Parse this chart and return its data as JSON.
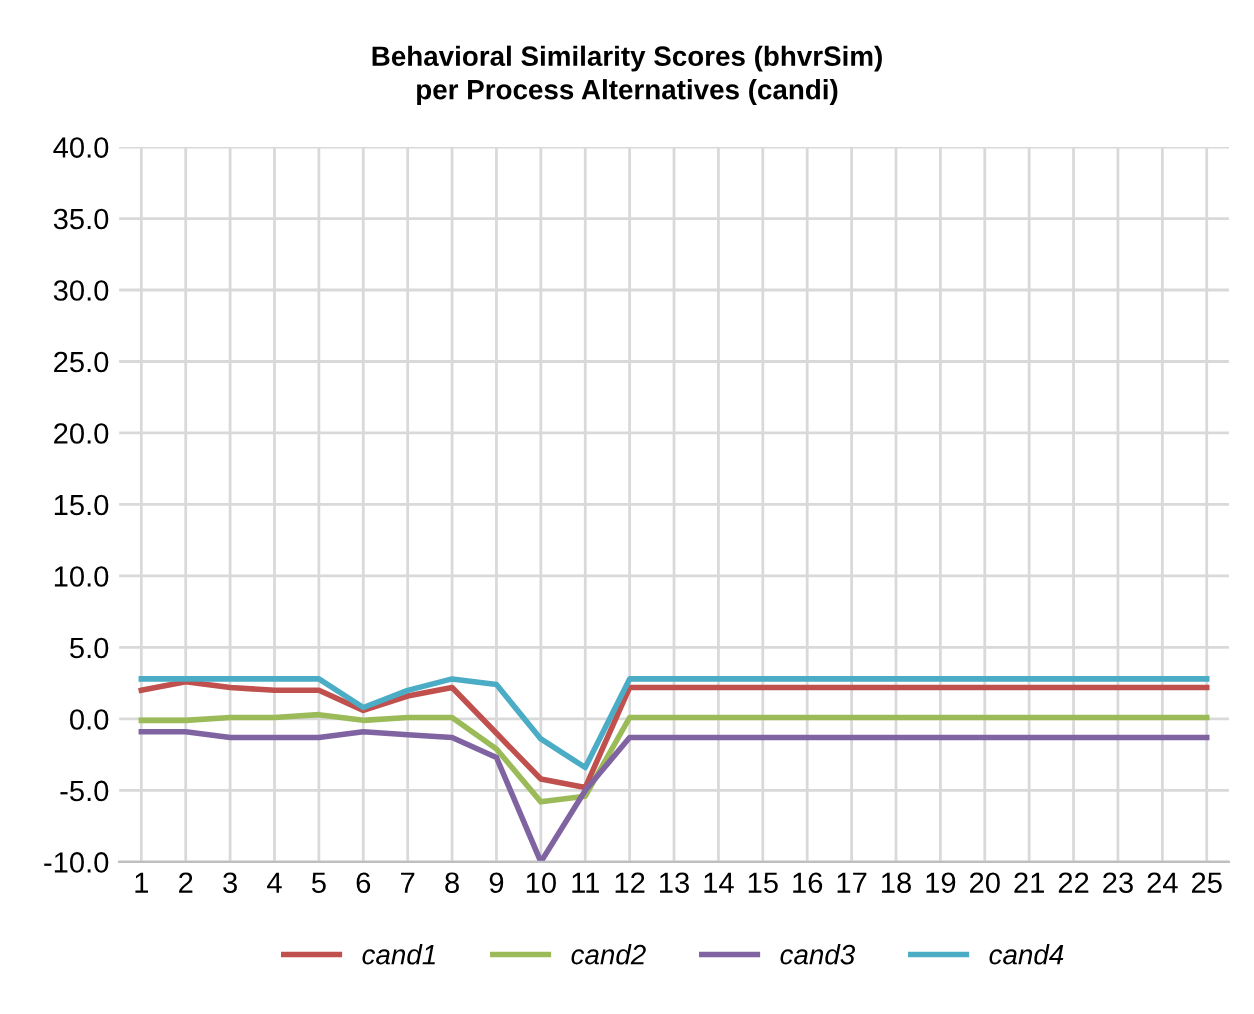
{
  "chart_data": {
    "type": "line",
    "title": "Behavioral Similarity Scores (bhvrSim)",
    "subtitle": "per Process Alternatives (candi)",
    "categories": [
      "1",
      "2",
      "3",
      "4",
      "5",
      "6",
      "7",
      "8",
      "9",
      "10",
      "11",
      "12",
      "13",
      "14",
      "15",
      "16",
      "17",
      "18",
      "19",
      "20",
      "21",
      "22",
      "23",
      "24",
      "25"
    ],
    "series": [
      {
        "name": "cand1",
        "color": "#c0504d",
        "values": [
          2.0,
          2.6,
          2.2,
          2.0,
          2.0,
          0.6,
          1.6,
          2.2,
          -1.0,
          -4.2,
          -4.8,
          2.2,
          2.2,
          2.2,
          2.2,
          2.2,
          2.2,
          2.2,
          2.2,
          2.2,
          2.2,
          2.2,
          2.2,
          2.2,
          2.2
        ]
      },
      {
        "name": "cand2",
        "color": "#9bbb59",
        "values": [
          -0.1,
          -0.1,
          0.1,
          0.1,
          0.3,
          -0.1,
          0.1,
          0.1,
          -2.1,
          -5.8,
          -5.4,
          0.1,
          0.1,
          0.1,
          0.1,
          0.1,
          0.1,
          0.1,
          0.1,
          0.1,
          0.1,
          0.1,
          0.1,
          0.1,
          0.1
        ]
      },
      {
        "name": "cand3",
        "color": "#8064a2",
        "values": [
          -0.9,
          -0.9,
          -1.3,
          -1.3,
          -1.3,
          -0.9,
          -1.1,
          -1.3,
          -2.7,
          -10.0,
          -5.0,
          -1.3,
          -1.3,
          -1.3,
          -1.3,
          -1.3,
          -1.3,
          -1.3,
          -1.3,
          -1.3,
          -1.3,
          -1.3,
          -1.3,
          -1.3,
          -1.3
        ]
      },
      {
        "name": "cand4",
        "color": "#4bacc6",
        "values": [
          2.8,
          2.8,
          2.8,
          2.8,
          2.8,
          0.8,
          2.0,
          2.8,
          2.4,
          -1.4,
          -3.4,
          2.8,
          2.8,
          2.8,
          2.8,
          2.8,
          2.8,
          2.8,
          2.8,
          2.8,
          2.8,
          2.8,
          2.8,
          2.8,
          2.8
        ]
      }
    ],
    "ylim": [
      -10,
      40
    ],
    "yticks": [
      {
        "value": -10,
        "label": "-10.0"
      },
      {
        "value": -5,
        "label": "-5.0"
      },
      {
        "value": 0,
        "label": "0.0"
      },
      {
        "value": 5,
        "label": "5.0"
      },
      {
        "value": 10,
        "label": "10.0"
      },
      {
        "value": 15,
        "label": "15.0"
      },
      {
        "value": 20,
        "label": "20.0"
      },
      {
        "value": 25,
        "label": "25.0"
      },
      {
        "value": 30,
        "label": "30.0"
      },
      {
        "value": 35,
        "label": "35.0"
      },
      {
        "value": 40,
        "label": "40.0"
      }
    ],
    "grid": true,
    "legend": "bottom",
    "marker": "none",
    "line_style": "solid"
  }
}
